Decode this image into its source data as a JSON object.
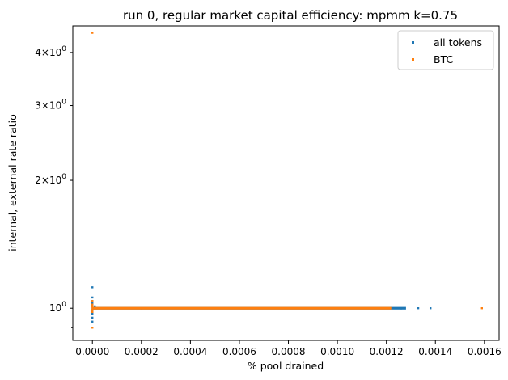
{
  "chart_data": {
    "type": "scatter",
    "title": "run 0, regular market capital efficiency: mpmm k=0.75",
    "xlabel": "% pool drained",
    "ylabel": "internal, external rate ratio",
    "xlim": [
      -8e-05,
      0.00166
    ],
    "ylim": [
      0.84,
      4.62
    ],
    "yscale": "log",
    "x_ticks": [
      {
        "value": 0.0,
        "label": "0.0000"
      },
      {
        "value": 0.0002,
        "label": "0.0002"
      },
      {
        "value": 0.0004,
        "label": "0.0004"
      },
      {
        "value": 0.0006,
        "label": "0.0006"
      },
      {
        "value": 0.0008,
        "label": "0.0008"
      },
      {
        "value": 0.001,
        "label": "0.0010"
      },
      {
        "value": 0.0012,
        "label": "0.0012"
      },
      {
        "value": 0.0014,
        "label": "0.0014"
      },
      {
        "value": 0.0016,
        "label": "0.0016"
      }
    ],
    "y_ticks": [
      {
        "value": 1.0,
        "label_base": "10",
        "label_exp": "0",
        "label_coef": ""
      },
      {
        "value": 2.0,
        "label_base": "10",
        "label_exp": "0",
        "label_coef": "2×"
      },
      {
        "value": 3.0,
        "label_base": "10",
        "label_exp": "0",
        "label_coef": "3×"
      },
      {
        "value": 4.0,
        "label_base": "10",
        "label_exp": "0",
        "label_coef": "4×"
      }
    ],
    "y_minor_ticks": [
      0.9
    ],
    "grid": false,
    "legend": "top-right",
    "series": [
      {
        "name": "all tokens",
        "color": "#1f77b4",
        "points": [
          [
            0.0,
            1.12
          ],
          [
            0.0,
            1.06
          ],
          [
            0.0,
            1.04
          ],
          [
            0.0,
            1.03
          ],
          [
            0.0,
            1.02
          ],
          [
            0.0,
            1.01
          ],
          [
            0.0,
            0.99
          ],
          [
            0.0,
            0.98
          ],
          [
            0.0,
            0.97
          ],
          [
            0.0,
            0.95
          ],
          [
            0.0,
            0.93
          ],
          [
            1e-05,
            1.01
          ],
          [
            2e-05,
            1.0
          ],
          [
            5e-05,
            1.0
          ],
          [
            0.0001,
            1.0
          ],
          [
            0.00015,
            1.0
          ],
          [
            0.0002,
            0.999
          ],
          [
            0.0003,
            1.0
          ],
          [
            0.0004,
            1.0
          ],
          [
            0.0005,
            1.0
          ],
          [
            0.0006,
            1.0
          ],
          [
            0.0007,
            1.0
          ],
          [
            0.0008,
            1.0
          ],
          [
            0.0009,
            1.0
          ],
          [
            0.001,
            1.0
          ],
          [
            0.00105,
            1.0
          ],
          [
            0.0011,
            1.0
          ],
          [
            0.00115,
            1.0
          ],
          [
            0.0012,
            1.0
          ],
          [
            0.00122,
            1.001
          ],
          [
            0.00125,
            1.0
          ],
          [
            0.00126,
            0.999
          ],
          [
            0.00127,
            1.0
          ],
          [
            0.00133,
            1.0
          ],
          [
            0.00138,
            1.0
          ]
        ]
      },
      {
        "name": "BTC",
        "color": "#ff7f0e",
        "points": [
          [
            0.0,
            4.45
          ],
          [
            0.0,
            0.9
          ],
          [
            0.0,
            1.04
          ],
          [
            0.0,
            1.02
          ],
          [
            0.0,
            1.01
          ],
          [
            0.0,
            0.99
          ],
          [
            0.0,
            0.98
          ],
          [
            1e-05,
            1.0
          ],
          [
            3e-05,
            1.0
          ],
          [
            8e-05,
            1.0
          ],
          [
            0.0001,
            1.0
          ],
          [
            0.0002,
            1.0
          ],
          [
            0.0003,
            1.0
          ],
          [
            0.0004,
            1.0
          ],
          [
            0.0005,
            1.0
          ],
          [
            0.0006,
            1.0
          ],
          [
            0.0007,
            1.0
          ],
          [
            0.0008,
            1.0
          ],
          [
            0.0009,
            1.0
          ],
          [
            0.001,
            1.0
          ],
          [
            0.0011,
            1.0
          ],
          [
            0.0012,
            1.0
          ],
          [
            0.00159,
            1.0
          ]
        ]
      }
    ]
  }
}
